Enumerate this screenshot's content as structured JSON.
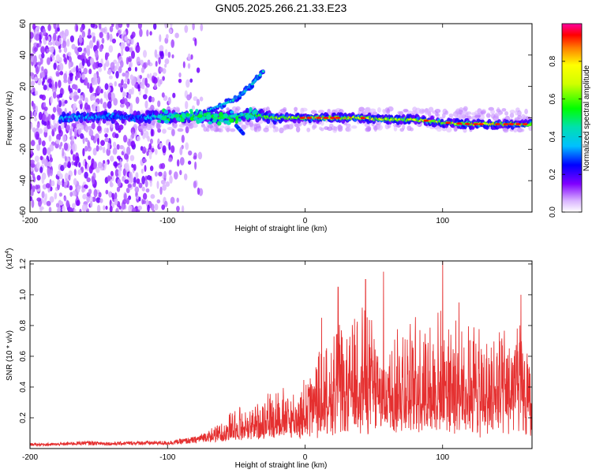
{
  "title": "GN05.2025.266.21.33.E23",
  "chart_data": [
    {
      "type": "heatmap",
      "xlabel": "Height of straight line (km)",
      "ylabel": "Frequency (Hz)",
      "xlim": [
        -200,
        165
      ],
      "ylim": [
        -60,
        60
      ],
      "x_ticks": [
        "-200",
        "-100",
        "0",
        "100"
      ],
      "y_ticks": [
        "-60",
        "-40",
        "-20",
        "0",
        "20",
        "40",
        "60"
      ],
      "colorbar": {
        "label": "Normalized spectral amplitude",
        "range": [
          0,
          1
        ],
        "ticks": [
          "0.0",
          "0.2",
          "0.4",
          "0.6",
          "0.8"
        ]
      },
      "description_of_ridge": [
        {
          "x": -175,
          "freq": 0,
          "amp": 0.4
        },
        {
          "x": -150,
          "freq": 1,
          "amp": 0.35
        },
        {
          "x": -120,
          "freq": 0,
          "amp": 0.3
        },
        {
          "x": -105,
          "freq": 1,
          "amp": 0.5
        },
        {
          "x": -80,
          "freq": 1,
          "amp": 0.55
        },
        {
          "x": -60,
          "freq": 0,
          "amp": 0.6
        },
        {
          "x": -40,
          "freq": 2,
          "amp": 0.55
        },
        {
          "x": -20,
          "freq": 0,
          "amp": 0.7
        },
        {
          "x": 0,
          "freq": 0,
          "amp": 0.8
        },
        {
          "x": 20,
          "freq": 0,
          "amp": 0.9
        },
        {
          "x": 40,
          "freq": 0,
          "amp": 0.85
        },
        {
          "x": 60,
          "freq": -1,
          "amp": 0.75
        },
        {
          "x": 80,
          "freq": -1,
          "amp": 0.8
        },
        {
          "x": 100,
          "freq": -3,
          "amp": 0.85
        },
        {
          "x": 120,
          "freq": -4,
          "amp": 0.9
        },
        {
          "x": 140,
          "freq": -4,
          "amp": 0.85
        },
        {
          "x": 160,
          "freq": -4,
          "amp": 0.8
        }
      ],
      "branch_up": [
        {
          "x": -70,
          "freq": 5
        },
        {
          "x": -50,
          "freq": 12
        },
        {
          "x": -40,
          "freq": 20
        },
        {
          "x": -30,
          "freq": 30
        }
      ],
      "branch_down": [
        {
          "x": -50,
          "freq": -5
        },
        {
          "x": -45,
          "freq": -10
        }
      ]
    },
    {
      "type": "line",
      "xlabel": "Height of straight line (km)",
      "ylabel": "SNR (10 * v/v)",
      "y_multiplier": "(x10",
      "y_multiplier_exp": "4",
      "y_multiplier_close": ")",
      "xlim": [
        -200,
        165
      ],
      "ylim": [
        0,
        1.22
      ],
      "x_ticks": [
        "-200",
        "-100",
        "0",
        "100"
      ],
      "y_ticks": [
        "0.2",
        "0.4",
        "0.6",
        "0.8",
        "1.0",
        "1.2"
      ],
      "color": "#e53030",
      "series": [
        {
          "x": [
            -200,
            -180,
            -160,
            -140,
            -120,
            -100,
            -90,
            -80,
            -70,
            -60,
            -50,
            -40,
            -30,
            -20,
            -10,
            0,
            10,
            20,
            25,
            30,
            40,
            50,
            55,
            60,
            70,
            80,
            90,
            100,
            110,
            120,
            130,
            140,
            150,
            155,
            160,
            165
          ],
          "values": [
            0.02,
            0.02,
            0.03,
            0.025,
            0.03,
            0.03,
            0.04,
            0.05,
            0.08,
            0.14,
            0.24,
            0.2,
            0.3,
            0.35,
            0.3,
            0.4,
            0.55,
            0.65,
            0.75,
            0.6,
            0.9,
            0.7,
            0.6,
            0.65,
            0.7,
            0.75,
            0.7,
            0.8,
            0.7,
            0.75,
            0.6,
            0.65,
            0.7,
            0.75,
            0.55,
            0.5
          ],
          "peaks": [
            {
              "x": 24,
              "y": 1.05
            },
            {
              "x": 44,
              "y": 1.1
            },
            {
              "x": 57,
              "y": 1.15
            },
            {
              "x": 100,
              "y": 1.22
            },
            {
              "x": 112,
              "y": 0.95
            },
            {
              "x": 157,
              "y": 1.0
            },
            {
              "x": 12,
              "y": 0.85
            }
          ]
        }
      ]
    }
  ]
}
